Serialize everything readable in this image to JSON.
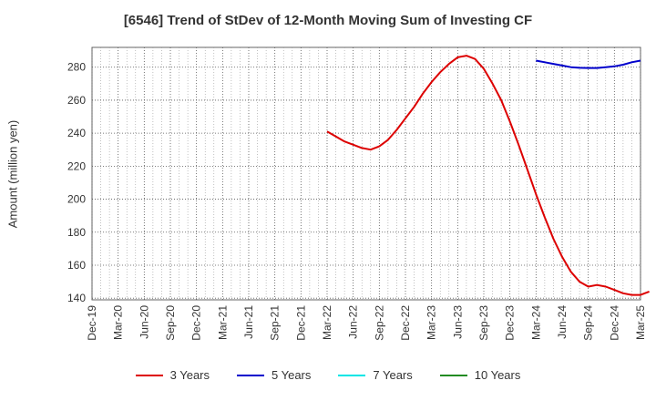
{
  "title": "[6546]  Trend of StDev of 12-Month Moving Sum of Investing CF",
  "chart_data": {
    "type": "line",
    "title": "[6546]  Trend of StDev of 12-Month Moving Sum of Investing CF",
    "xlabel": "",
    "ylabel": "Amount (million yen)",
    "x_ticks": [
      "Dec-19",
      "Mar-20",
      "Jun-20",
      "Sep-20",
      "Dec-20",
      "Mar-21",
      "Jun-21",
      "Sep-21",
      "Dec-21",
      "Mar-22",
      "Jun-22",
      "Sep-22",
      "Dec-22",
      "Mar-23",
      "Jun-23",
      "Sep-23",
      "Dec-23",
      "Mar-24",
      "Jun-24",
      "Sep-24",
      "Dec-24",
      "Mar-25"
    ],
    "y_ticks": [
      140,
      160,
      180,
      200,
      220,
      240,
      260,
      280
    ],
    "ylim": [
      139,
      292
    ],
    "grid": true,
    "legend_position": "bottom",
    "series": [
      {
        "name": "3 Years",
        "color": "#dd0000",
        "points": [
          [
            "2022-03",
            241
          ],
          [
            "2022-04",
            238
          ],
          [
            "2022-05",
            235
          ],
          [
            "2022-06",
            233
          ],
          [
            "2022-07",
            231
          ],
          [
            "2022-08",
            230
          ],
          [
            "2022-09",
            232
          ],
          [
            "2022-10",
            236
          ],
          [
            "2022-11",
            242
          ],
          [
            "2022-12",
            249
          ],
          [
            "2023-01",
            256
          ],
          [
            "2023-02",
            264
          ],
          [
            "2023-03",
            271
          ],
          [
            "2023-04",
            277
          ],
          [
            "2023-05",
            282
          ],
          [
            "2023-06",
            286
          ],
          [
            "2023-07",
            287
          ],
          [
            "2023-08",
            285
          ],
          [
            "2023-09",
            279
          ],
          [
            "2023-10",
            270
          ],
          [
            "2023-11",
            260
          ],
          [
            "2023-12",
            247
          ],
          [
            "2024-01",
            233
          ],
          [
            "2024-02",
            218
          ],
          [
            "2024-03",
            203
          ],
          [
            "2024-04",
            189
          ],
          [
            "2024-05",
            176
          ],
          [
            "2024-06",
            165
          ],
          [
            "2024-07",
            156
          ],
          [
            "2024-08",
            150
          ],
          [
            "2024-09",
            147
          ],
          [
            "2024-10",
            148
          ],
          [
            "2024-11",
            147
          ],
          [
            "2024-12",
            145
          ],
          [
            "2025-01",
            143
          ],
          [
            "2025-02",
            142
          ],
          [
            "2025-03",
            142
          ],
          [
            "2025-04",
            144
          ]
        ]
      },
      {
        "name": "5 Years",
        "color": "#0000cc",
        "points": [
          [
            "2024-03",
            284
          ],
          [
            "2024-04",
            283
          ],
          [
            "2024-05",
            282
          ],
          [
            "2024-06",
            281
          ],
          [
            "2024-07",
            280
          ],
          [
            "2024-08",
            279.6
          ],
          [
            "2024-09",
            279.5
          ],
          [
            "2024-10",
            279.5
          ],
          [
            "2024-11",
            280
          ],
          [
            "2024-12",
            280.5
          ],
          [
            "2025-01",
            281.5
          ],
          [
            "2025-02",
            283
          ],
          [
            "2025-03",
            284
          ]
        ]
      },
      {
        "name": "7 Years",
        "color": "#00e5e5",
        "points": []
      },
      {
        "name": "10 Years",
        "color": "#228b22",
        "points": []
      }
    ]
  }
}
